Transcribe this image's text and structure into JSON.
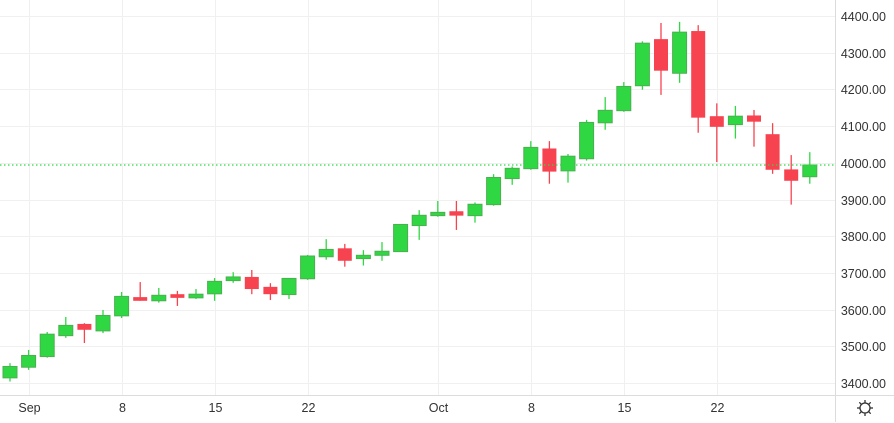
{
  "chart_data": {
    "type": "candlestick",
    "title": "",
    "ylim": [
      3380,
      4420
    ],
    "y_ticks": [
      "3400.00",
      "3500.00",
      "3600.00",
      "3700.00",
      "3800.00",
      "3900.00",
      "4000.00",
      "4100.00",
      "4200.00",
      "4300.00",
      "4400.00"
    ],
    "x_ticks": [
      {
        "label": "Sep",
        "index": 1
      },
      {
        "label": "8",
        "index": 6
      },
      {
        "label": "15",
        "index": 11
      },
      {
        "label": "22",
        "index": 16
      },
      {
        "label": "Oct",
        "index": 23
      },
      {
        "label": "8",
        "index": 28
      },
      {
        "label": "15",
        "index": 33
      },
      {
        "label": "22",
        "index": 38
      }
    ],
    "last_price_line": 3994,
    "colors": {
      "up": "#2fd843",
      "up_border": "#4caf50",
      "down": "#f7434f",
      "grid": "#f0f0f0",
      "price_line": "#2fd843"
    },
    "candles_ohlc": [
      [
        3414,
        3454,
        3404,
        3445
      ],
      [
        3443,
        3490,
        3436,
        3475
      ],
      [
        3472,
        3539,
        3469,
        3533
      ],
      [
        3529,
        3580,
        3523,
        3557
      ],
      [
        3561,
        3563,
        3509,
        3545
      ],
      [
        3542,
        3599,
        3536,
        3584
      ],
      [
        3583,
        3648,
        3577,
        3636
      ],
      [
        3634,
        3675,
        3624,
        3624
      ],
      [
        3624,
        3659,
        3619,
        3639
      ],
      [
        3642,
        3651,
        3610,
        3632
      ],
      [
        3632,
        3656,
        3629,
        3642
      ],
      [
        3643,
        3686,
        3624,
        3677
      ],
      [
        3679,
        3702,
        3673,
        3689
      ],
      [
        3689,
        3708,
        3642,
        3656
      ],
      [
        3662,
        3672,
        3626,
        3642
      ],
      [
        3641,
        3685,
        3629,
        3685
      ],
      [
        3684,
        3749,
        3681,
        3746
      ],
      [
        3744,
        3792,
        3736,
        3764
      ],
      [
        3767,
        3779,
        3717,
        3733
      ],
      [
        3739,
        3762,
        3720,
        3748
      ],
      [
        3748,
        3784,
        3733,
        3759
      ],
      [
        3758,
        3832,
        3758,
        3832
      ],
      [
        3829,
        3871,
        3790,
        3857
      ],
      [
        3856,
        3896,
        3853,
        3865
      ],
      [
        3868,
        3896,
        3817,
        3856
      ],
      [
        3856,
        3892,
        3837,
        3887
      ],
      [
        3886,
        3969,
        3883,
        3960
      ],
      [
        3957,
        3990,
        3940,
        3985
      ],
      [
        3984,
        4059,
        3981,
        4042
      ],
      [
        4039,
        4059,
        3943,
        3976
      ],
      [
        3978,
        4024,
        3946,
        4018
      ],
      [
        4011,
        4117,
        4006,
        4110
      ],
      [
        4109,
        4179,
        4090,
        4143
      ],
      [
        4142,
        4220,
        4139,
        4208
      ],
      [
        4210,
        4331,
        4199,
        4326
      ],
      [
        4337,
        4381,
        4185,
        4251
      ],
      [
        4244,
        4384,
        4218,
        4356
      ],
      [
        4359,
        4375,
        4082,
        4123
      ],
      [
        4127,
        4162,
        4002,
        4098
      ],
      [
        4104,
        4155,
        4066,
        4127
      ],
      [
        4129,
        4144,
        4044,
        4112
      ],
      [
        4078,
        4108,
        3970,
        3981
      ],
      [
        3982,
        4021,
        3886,
        3951
      ],
      [
        3962,
        4029,
        3943,
        3994
      ]
    ]
  },
  "settings": {
    "icon": "gear-icon"
  }
}
